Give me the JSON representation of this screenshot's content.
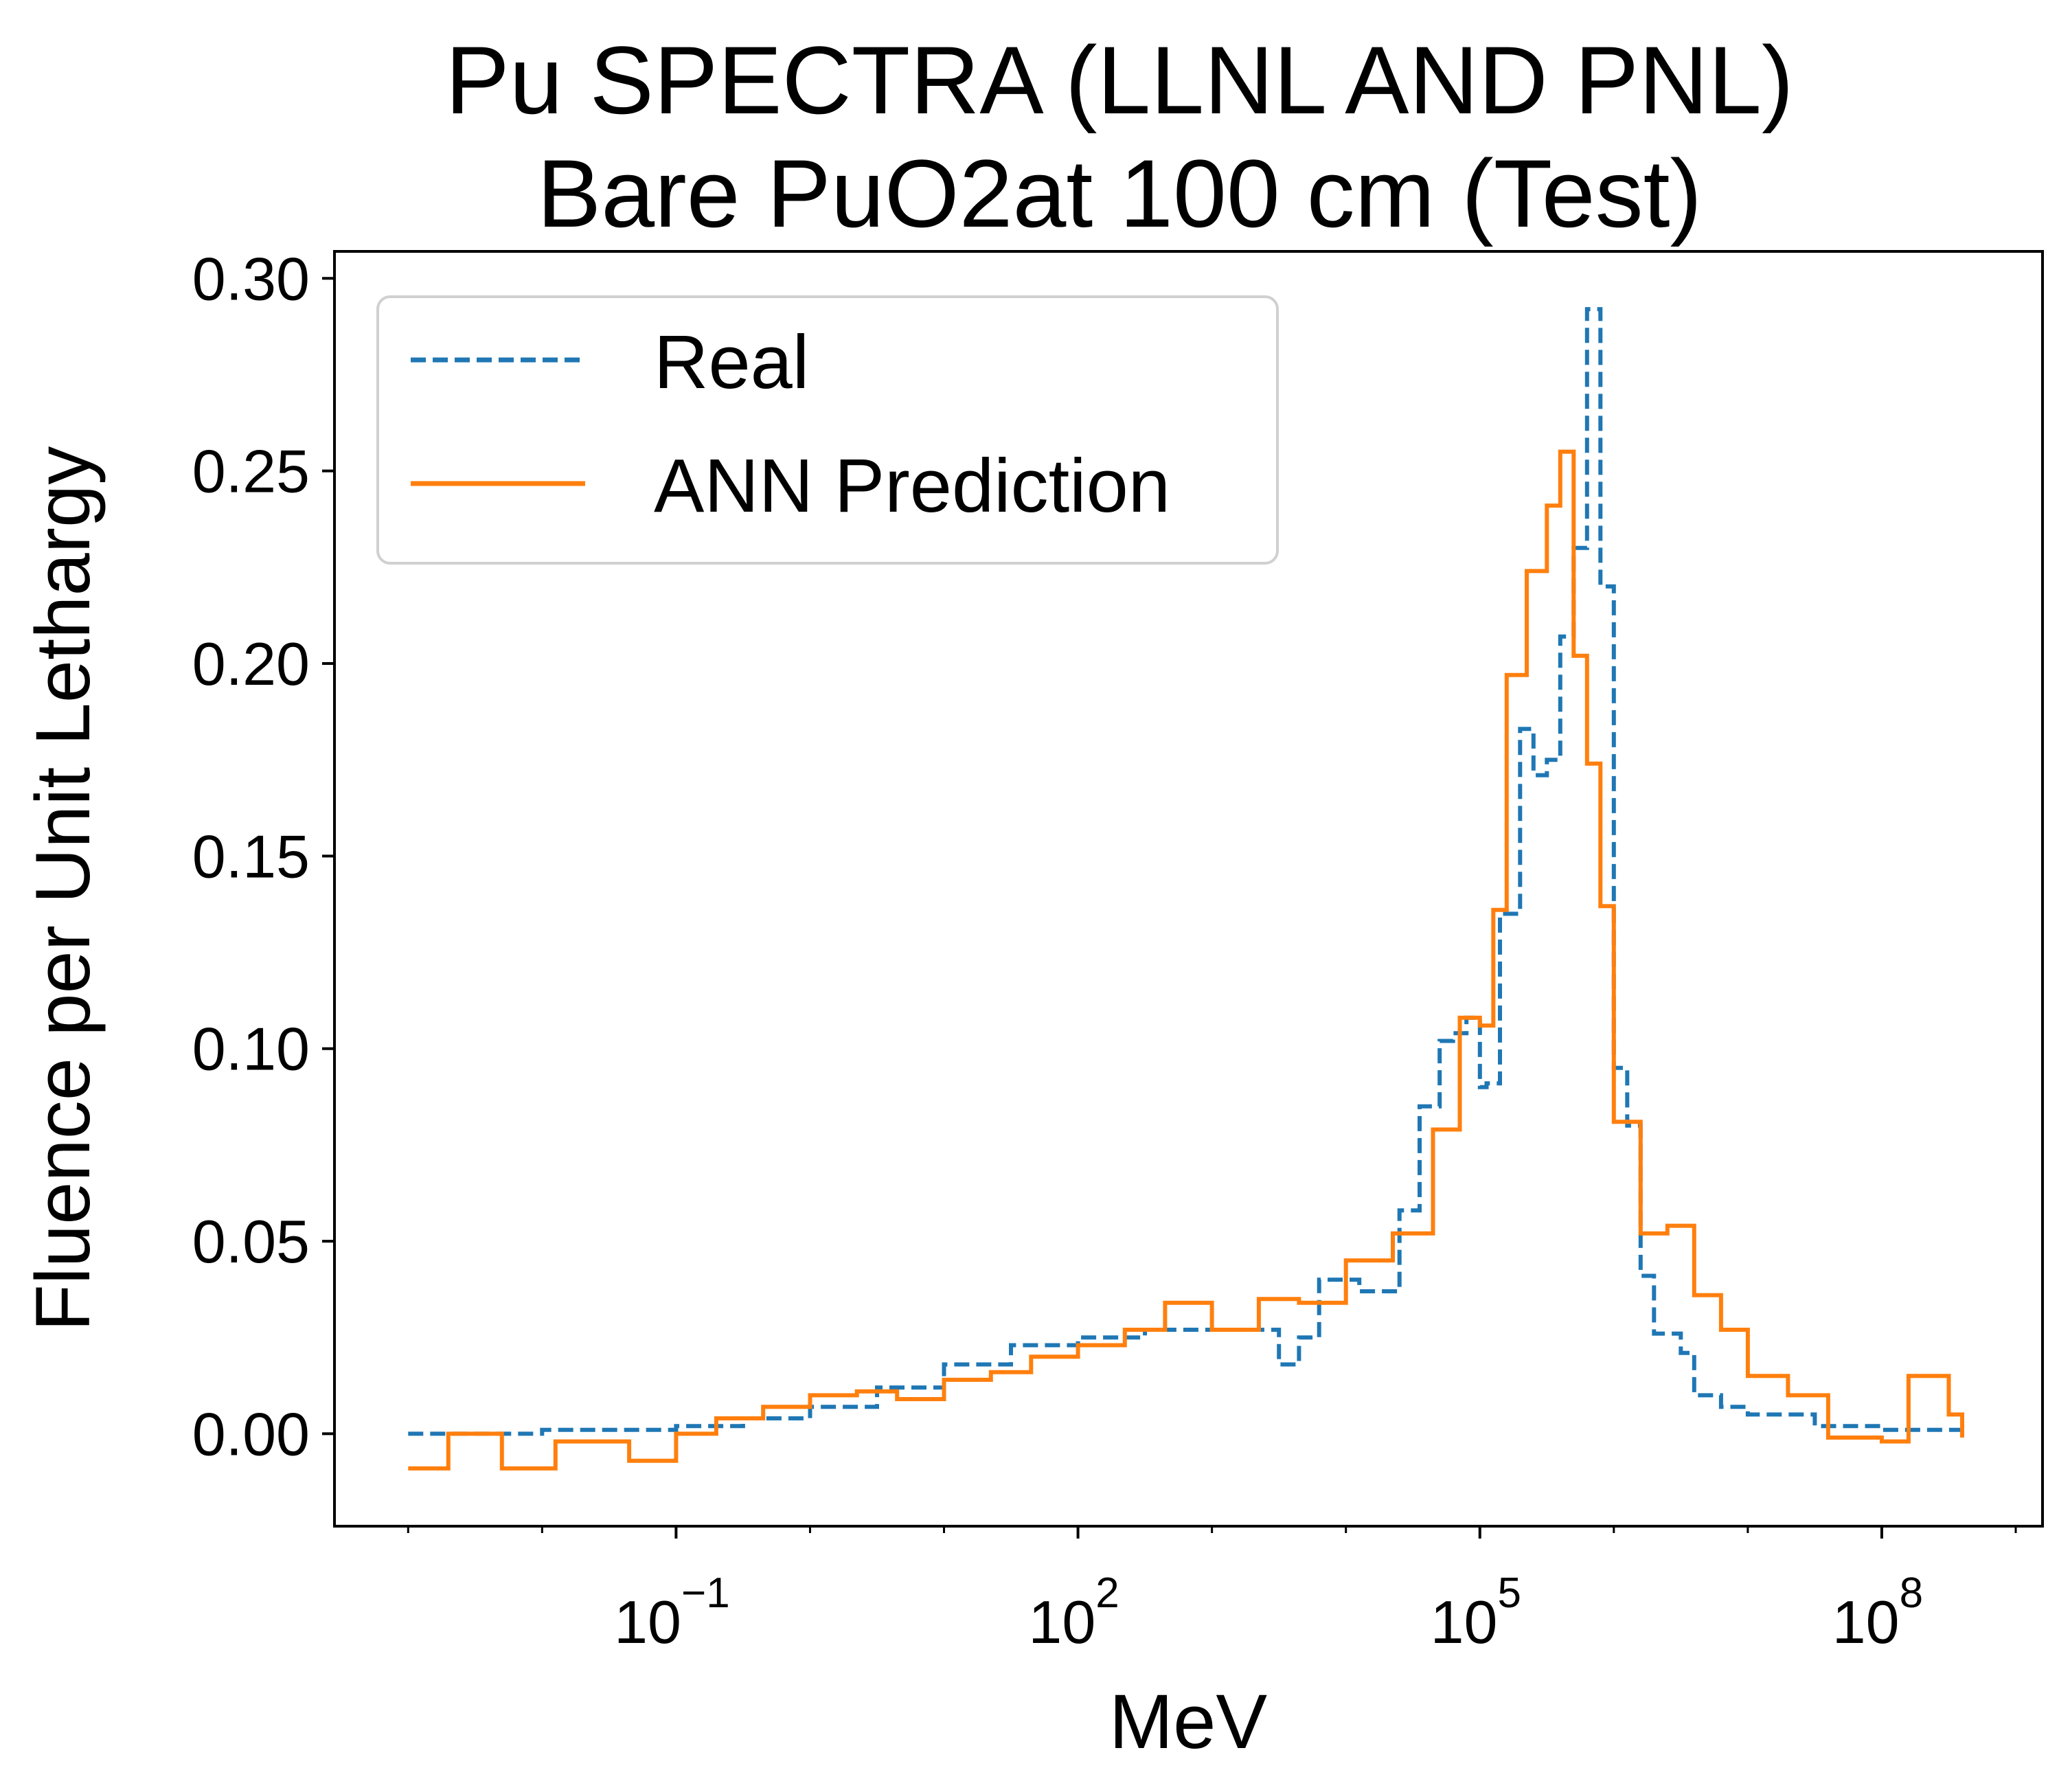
{
  "chart_data": {
    "type": "line",
    "title": "Pu SPECTRA (LLNL AND PNL)",
    "subtitle": "Bare PuO2at 100 cm (Test)",
    "xlabel": "MeV",
    "ylabel": "Fluence per Unit Lethargy",
    "xscale": "log",
    "xlim_log10": [
      -3.55,
      9.2
    ],
    "ylim": [
      -0.024,
      0.307
    ],
    "xticks": [
      {
        "base": "10",
        "exp": "−1",
        "log10": -1
      },
      {
        "base": "10",
        "exp": "2",
        "log10": 2
      },
      {
        "base": "10",
        "exp": "5",
        "log10": 5
      },
      {
        "base": "10",
        "exp": "8",
        "log10": 8
      }
    ],
    "yticks": [
      "0.00",
      "0.05",
      "0.10",
      "0.15",
      "0.20",
      "0.25",
      "0.30"
    ],
    "grid": false,
    "legend_position": "top-left",
    "step_style": "post",
    "series": [
      {
        "name": "Real",
        "color": "#1f77b4",
        "dash": "dashed",
        "log10_x": [
          -3,
          -2,
          -1.5,
          -1,
          -0.5,
          0,
          0.5,
          1,
          1.5,
          2,
          2.5,
          3,
          3.5,
          3.65,
          3.8,
          4.0,
          4.1,
          4.2,
          4.4,
          4.55,
          4.7,
          4.8,
          4.9,
          5.0,
          5.05,
          5.15,
          5.3,
          5.4,
          5.5,
          5.6,
          5.7,
          5.8,
          5.9,
          6.0,
          6.1,
          6.2,
          6.3,
          6.5,
          6.6,
          6.8,
          7,
          7.5,
          8,
          8.6
        ],
        "y": [
          0.0,
          0.001,
          0.001,
          0.002,
          0.004,
          0.007,
          0.012,
          0.018,
          0.023,
          0.025,
          0.027,
          0.027,
          0.018,
          0.025,
          0.04,
          0.04,
          0.037,
          0.037,
          0.058,
          0.085,
          0.102,
          0.104,
          0.108,
          0.09,
          0.091,
          0.135,
          0.183,
          0.171,
          0.175,
          0.207,
          0.23,
          0.292,
          0.22,
          0.095,
          0.08,
          0.041,
          0.026,
          0.021,
          0.01,
          0.007,
          0.005,
          0.002,
          0.001,
          0.001
        ]
      },
      {
        "name": "ANN Prediction",
        "color": "#ff7f0e",
        "dash": "solid",
        "log10_x": [
          -3,
          -2.7,
          -2.3,
          -1.9,
          -1.7,
          -1.35,
          -1.0,
          -0.7,
          -0.35,
          0.0,
          0.35,
          0.65,
          1.0,
          1.35,
          1.65,
          2.0,
          2.35,
          2.65,
          3.0,
          3.35,
          3.65,
          4.0,
          4.35,
          4.65,
          4.75,
          4.85,
          5.0,
          5.1,
          5.2,
          5.35,
          5.5,
          5.6,
          5.7,
          5.8,
          5.9,
          6.0,
          6.2,
          6.4,
          6.6,
          6.8,
          7.0,
          7.3,
          7.6,
          8.0,
          8.2,
          8.5,
          8.6
        ],
        "y": [
          -0.009,
          0.0,
          -0.009,
          -0.002,
          -0.002,
          -0.007,
          0.0,
          0.004,
          0.007,
          0.01,
          0.011,
          0.009,
          0.014,
          0.016,
          0.02,
          0.023,
          0.027,
          0.034,
          0.027,
          0.035,
          0.034,
          0.045,
          0.052,
          0.079,
          0.079,
          0.108,
          0.106,
          0.136,
          0.197,
          0.224,
          0.241,
          0.255,
          0.202,
          0.174,
          0.137,
          0.081,
          0.052,
          0.054,
          0.036,
          0.027,
          0.015,
          0.01,
          -0.001,
          -0.002,
          0.015,
          0.005,
          -0.001
        ]
      }
    ]
  }
}
